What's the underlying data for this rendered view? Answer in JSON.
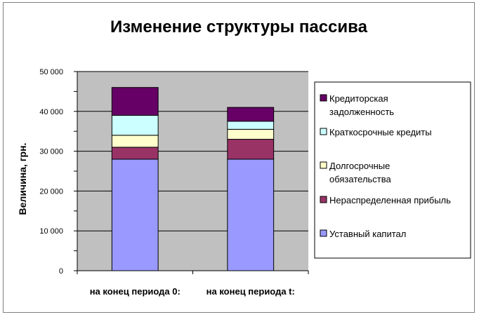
{
  "chart_data": {
    "type": "bar",
    "stacked": true,
    "title": "Изменение структуры пассива",
    "ylabel": "Величина, грн.",
    "xlabel": "",
    "ylim": [
      0,
      50000
    ],
    "yticks": [
      0,
      10000,
      20000,
      30000,
      40000,
      50000
    ],
    "ytick_labels": [
      "0",
      "10 000",
      "20 000",
      "30 000",
      "40 000",
      "50 000"
    ],
    "categories": [
      "на конец периода 0:",
      "на конец периода t:"
    ],
    "series": [
      {
        "name": "Уставный капитал",
        "color": "#9999ff",
        "values": [
          28000,
          28000
        ]
      },
      {
        "name": "Нераспределенная прибыль",
        "color": "#993366",
        "values": [
          3000,
          5000
        ]
      },
      {
        "name": "Долгосрочные обязательства",
        "color": "#ffffcc",
        "values": [
          3000,
          2500
        ]
      },
      {
        "name": "Краткосрочные кредиты",
        "color": "#ccffff",
        "values": [
          5000,
          2000
        ]
      },
      {
        "name": "Кредиторская задолженность",
        "color": "#660066",
        "values": [
          7000,
          3500
        ]
      }
    ],
    "legend_position": "right",
    "legend_items": [
      {
        "series": 4,
        "lines": [
          "Кредиторская",
          "задолженность"
        ]
      },
      {
        "series": 3,
        "lines": [
          "Краткосрочные кредиты"
        ]
      },
      {
        "series": 2,
        "lines": [
          "Долгосрочные",
          "обязательства"
        ]
      },
      {
        "series": 1,
        "lines": [
          "Нераспределенная прибыль"
        ]
      },
      {
        "series": 0,
        "lines": [
          "Уставный капитал"
        ]
      }
    ],
    "grid": true,
    "plot_background": "#c0c0c0"
  }
}
